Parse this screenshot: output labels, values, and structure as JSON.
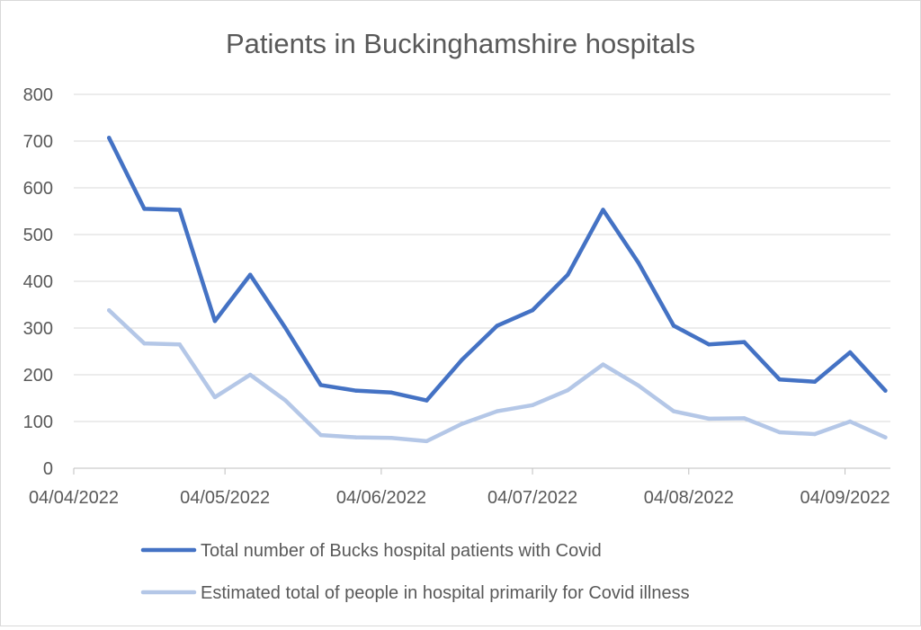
{
  "chart_data": {
    "type": "line",
    "title": "Patients in Buckinghamshire hospitals",
    "xlabel": "",
    "ylabel": "",
    "ylim": [
      0,
      800
    ],
    "yticks": [
      0,
      100,
      200,
      300,
      400,
      500,
      600,
      700,
      800
    ],
    "x_unit": "days since 04/04/2022",
    "xlim": [
      0,
      162
    ],
    "xticks": [
      {
        "value": 0,
        "label": "04/04/2022"
      },
      {
        "value": 30,
        "label": "04/05/2022"
      },
      {
        "value": 61,
        "label": "04/06/2022"
      },
      {
        "value": 91,
        "label": "04/07/2022"
      },
      {
        "value": 122,
        "label": "04/08/2022"
      },
      {
        "value": 153,
        "label": "04/09/2022"
      }
    ],
    "x": [
      7,
      14,
      21,
      28,
      35,
      42,
      49,
      56,
      63,
      70,
      77,
      84,
      91,
      98,
      105,
      112,
      119,
      126,
      133,
      140,
      147,
      154,
      161
    ],
    "dates": [
      "11/04/2022",
      "18/04/2022",
      "25/04/2022",
      "02/05/2022",
      "09/05/2022",
      "16/05/2022",
      "23/05/2022",
      "30/05/2022",
      "06/06/2022",
      "13/06/2022",
      "20/06/2022",
      "27/06/2022",
      "04/07/2022",
      "11/07/2022",
      "18/07/2022",
      "25/07/2022",
      "01/08/2022",
      "08/08/2022",
      "15/08/2022",
      "22/08/2022",
      "29/08/2022",
      "05/09/2022",
      "12/09/2022"
    ],
    "grid": true,
    "legend_position": "bottom",
    "series": [
      {
        "name": "Total number of Bucks hospital patients with Covid",
        "color": "#4472c4",
        "values": [
          707,
          555,
          553,
          315,
          414,
          300,
          178,
          166,
          162,
          145,
          232,
          305,
          338,
          414,
          553,
          440,
          305,
          265,
          270,
          190,
          185,
          248,
          166
        ]
      },
      {
        "name": "Estimated total of people in hospital primarily for Covid illness",
        "color": "#b4c7e7",
        "values": [
          338,
          267,
          265,
          152,
          200,
          145,
          71,
          66,
          65,
          58,
          95,
          122,
          135,
          167,
          222,
          177,
          122,
          106,
          107,
          77,
          73,
          100,
          66
        ]
      }
    ]
  }
}
